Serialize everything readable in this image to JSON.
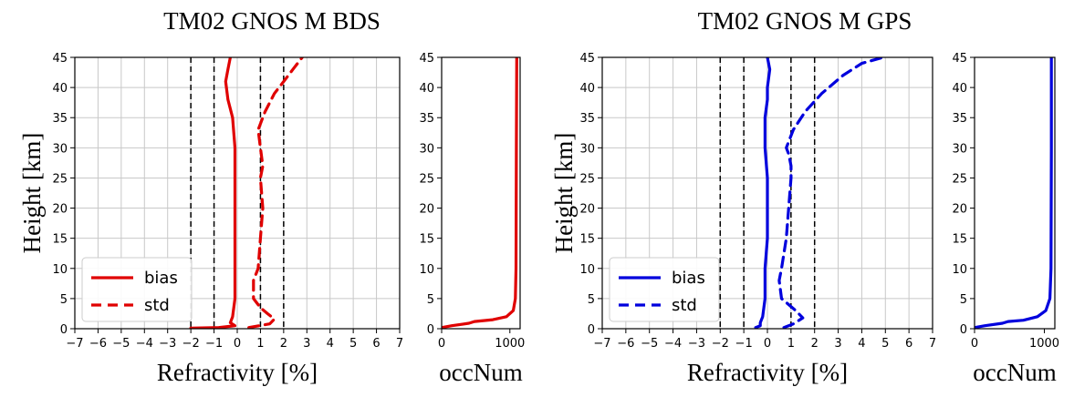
{
  "chart_data": [
    {
      "type": "line",
      "title": "TM02 GNOS M BDS",
      "color": "#e00000",
      "refractivity": {
        "xlabel": "Refractivity [%]",
        "ylabel": "Height [km]",
        "xlim": [
          -7,
          7
        ],
        "ylim": [
          0,
          45
        ],
        "xticks": [
          "−7",
          "−6",
          "−5",
          "−4",
          "−3",
          "−2",
          "−1",
          "0",
          "1",
          "2",
          "3",
          "4",
          "5",
          "6",
          "7"
        ],
        "yticks": [
          "0",
          "5",
          "10",
          "15",
          "20",
          "25",
          "30",
          "35",
          "40",
          "45"
        ],
        "grid": true,
        "reference_lines_x": [
          -2,
          -1,
          1,
          2
        ],
        "legend": {
          "position": "lower-left",
          "entries": [
            "bias",
            "std"
          ]
        },
        "series": [
          {
            "name": "bias",
            "style": "solid",
            "x": [
              -2.0,
              -0.8,
              -0.1,
              -0.3,
              -0.2,
              -0.1,
              -0.1,
              -0.1,
              -0.1,
              -0.1,
              -0.1,
              -0.2,
              -0.4,
              -0.5,
              -0.4,
              -0.3
            ],
            "y": [
              0.1,
              0.2,
              0.5,
              1.0,
              2.0,
              5.0,
              10.0,
              15.0,
              20.0,
              25.0,
              30.0,
              35.0,
              38.0,
              41.0,
              43.0,
              45.0
            ]
          },
          {
            "name": "std",
            "style": "dashed",
            "x": [
              0.5,
              1.4,
              1.6,
              1.3,
              1.0,
              0.7,
              0.7,
              0.9,
              1.0,
              1.1,
              1.0,
              1.1,
              1.0,
              0.9,
              1.2,
              1.6,
              2.0,
              2.4,
              2.8
            ],
            "y": [
              0.2,
              0.8,
              1.6,
              2.5,
              3.5,
              5.0,
              8.0,
              10.0,
              15.0,
              20.0,
              25.0,
              27.0,
              30.0,
              33.0,
              36.0,
              39.0,
              41.0,
              43.0,
              45.0
            ]
          }
        ]
      },
      "occ": {
        "xlabel": "occNum",
        "xlim": [
          0,
          1150
        ],
        "ylim": [
          0,
          45
        ],
        "xticks": [
          0,
          1000
        ],
        "yticks": [
          "0",
          "5",
          "10",
          "15",
          "20",
          "25",
          "30",
          "35",
          "40",
          "45"
        ],
        "grid": false,
        "series": [
          {
            "name": "occNum",
            "style": "solid",
            "x": [
              0,
              150,
              400,
              480,
              750,
              950,
              1050,
              1080,
              1090,
              1095,
              1100
            ],
            "y": [
              0.2,
              0.5,
              0.9,
              1.2,
              1.5,
              2.0,
              3.0,
              5.0,
              10.0,
              30.0,
              45.0
            ]
          }
        ]
      }
    },
    {
      "type": "line",
      "title": "TM02 GNOS M GPS",
      "color": "#0000dd",
      "refractivity": {
        "xlabel": "Refractivity [%]",
        "ylabel": "Height [km]",
        "xlim": [
          -7,
          7
        ],
        "ylim": [
          0,
          45
        ],
        "xticks": [
          "−7",
          "−6",
          "−5",
          "−4",
          "−3",
          "−2",
          "−1",
          "0",
          "1",
          "2",
          "3",
          "4",
          "5",
          "6",
          "7"
        ],
        "yticks": [
          "0",
          "5",
          "10",
          "15",
          "20",
          "25",
          "30",
          "35",
          "40",
          "45"
        ],
        "grid": true,
        "reference_lines_x": [
          -2,
          -1,
          1,
          2
        ],
        "legend": {
          "position": "lower-left",
          "entries": [
            "bias",
            "std"
          ]
        },
        "series": [
          {
            "name": "bias",
            "style": "solid",
            "x": [
              -0.5,
              -0.3,
              -0.3,
              -0.2,
              -0.1,
              -0.1,
              0.0,
              0.0,
              0.0,
              -0.1,
              -0.1,
              0.0,
              0.0,
              0.1,
              0.0
            ],
            "y": [
              0.2,
              0.5,
              1.0,
              2.0,
              5.0,
              10.0,
              15.0,
              20.0,
              25.0,
              30.0,
              35.0,
              38.0,
              40.0,
              43.0,
              45.0
            ]
          },
          {
            "name": "std",
            "style": "dashed",
            "x": [
              0.7,
              1.1,
              1.5,
              1.2,
              0.9,
              0.6,
              0.5,
              0.6,
              0.8,
              0.9,
              1.0,
              1.0,
              0.9,
              0.8,
              1.1,
              1.6,
              2.3,
              3.2,
              4.0,
              4.9
            ],
            "y": [
              0.2,
              0.8,
              1.8,
              3.0,
              4.0,
              5.0,
              8.0,
              10.0,
              15.0,
              20.0,
              25.0,
              27.0,
              29.0,
              30.0,
              33.0,
              36.0,
              39.0,
              42.0,
              44.0,
              45.0
            ]
          }
        ]
      },
      "occ": {
        "xlabel": "occNum",
        "xlim": [
          0,
          1150
        ],
        "ylim": [
          0,
          45
        ],
        "xticks": [
          0,
          1000
        ],
        "yticks": [
          "0",
          "5",
          "10",
          "15",
          "20",
          "25",
          "30",
          "35",
          "40",
          "45"
        ],
        "grid": false,
        "series": [
          {
            "name": "occNum",
            "style": "solid",
            "x": [
              0,
              150,
              400,
              480,
              700,
              900,
              1020,
              1080,
              1095,
              1100,
              1100
            ],
            "y": [
              0.2,
              0.5,
              0.9,
              1.2,
              1.4,
              2.0,
              3.0,
              5.0,
              10.0,
              30.0,
              45.0
            ]
          }
        ]
      }
    }
  ]
}
